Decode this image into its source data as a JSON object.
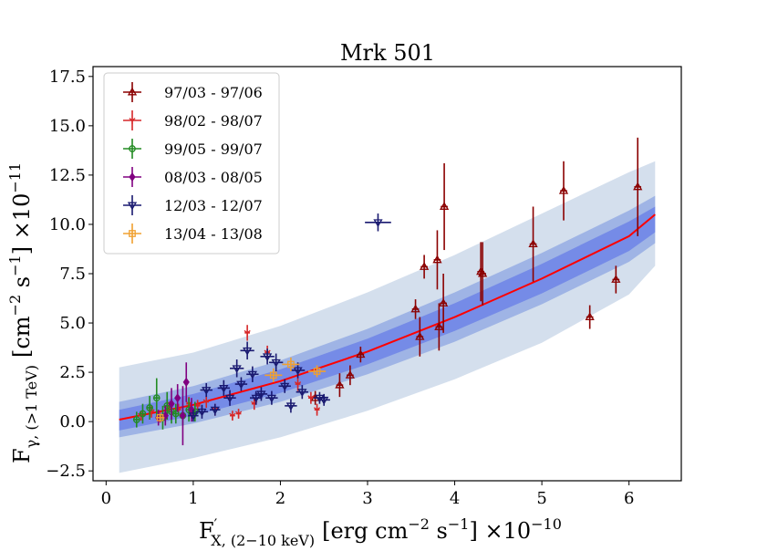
{
  "chart_data": {
    "type": "scatter",
    "title": "Mrk 501",
    "xlabel": {
      "main": "F",
      "prime": "′",
      "sub": "X, (2−10 keV)",
      "units": "[erg cm",
      "units_exp1": "−2",
      "units_mid": " s",
      "units_exp2": "−1",
      "units_end": "] ×10",
      "scale_exp": "−10"
    },
    "ylabel": {
      "main": "F",
      "sub": "γ, (>1 TeV)",
      "units": "[cm",
      "units_exp1": "−2",
      "units_mid": " s",
      "units_exp2": "−1",
      "units_end": "] ×10",
      "scale_exp": "−11"
    },
    "xlim": [
      -0.15,
      6.6
    ],
    "ylim": [
      -3.0,
      18.0
    ],
    "xticks": [
      0,
      1,
      2,
      3,
      4,
      5,
      6
    ],
    "xtick_labels": [
      "0",
      "1",
      "2",
      "3",
      "4",
      "5",
      "6"
    ],
    "yticks": [
      -2.5,
      0.0,
      2.5,
      5.0,
      7.5,
      10.0,
      12.5,
      15.0,
      17.5
    ],
    "ytick_labels": [
      "−2.5",
      "0.0",
      "2.5",
      "5.0",
      "7.5",
      "10.0",
      "12.5",
      "15.0",
      "17.5"
    ],
    "grid": false,
    "legend_position": "top-left",
    "fit": {
      "color": "#ff0000",
      "x": [
        0.15,
        1,
        2,
        3,
        4,
        5,
        6,
        6.3
      ],
      "y": [
        0.1,
        0.85,
        2.05,
        3.55,
        5.3,
        7.25,
        9.4,
        10.5
      ]
    },
    "bands": [
      {
        "color": "#b0c4de",
        "lower": [
          -2.6,
          -1.85,
          -0.8,
          0.55,
          2.15,
          4.0,
          6.45,
          7.9
        ],
        "upper": [
          2.75,
          3.5,
          4.85,
          6.55,
          8.45,
          10.55,
          12.65,
          13.2
        ]
      },
      {
        "color": "#7b98e0",
        "lower": [
          -0.8,
          -0.1,
          1.0,
          2.4,
          4.05,
          5.95,
          8.1,
          9.05
        ],
        "upper": [
          1.0,
          1.8,
          3.1,
          4.7,
          6.55,
          8.55,
          10.7,
          11.45
        ]
      },
      {
        "color": "#5a6fe8",
        "lower": [
          -0.45,
          0.3,
          1.45,
          2.9,
          4.6,
          6.5,
          8.65,
          9.6
        ],
        "upper": [
          0.6,
          1.4,
          2.65,
          4.2,
          6.0,
          8.0,
          10.15,
          10.9
        ]
      }
    ],
    "series": [
      {
        "name": "97/03 - 97/06",
        "color": "#8b0000",
        "marker": "triangle-up",
        "x": [
          2.4,
          2.68,
          2.8,
          2.92,
          3.55,
          3.6,
          3.65,
          3.8,
          3.82,
          3.87,
          3.88,
          4.3,
          4.32,
          4.9,
          5.25,
          5.55,
          5.85,
          6.1
        ],
        "y": [
          1.2,
          1.85,
          2.35,
          3.4,
          5.7,
          4.3,
          7.85,
          8.2,
          4.8,
          6.0,
          10.9,
          7.6,
          7.5,
          9.0,
          11.7,
          5.3,
          7.2,
          11.9
        ],
        "yerr": [
          0.35,
          0.6,
          0.5,
          0.4,
          0.5,
          1.0,
          0.6,
          1.5,
          1.2,
          1.5,
          2.2,
          1.5,
          1.6,
          1.9,
          1.5,
          0.6,
          0.7,
          2.5
        ],
        "xerr": [
          0.04,
          0.04,
          0.04,
          0.04,
          0.04,
          0.04,
          0.04,
          0.04,
          0.04,
          0.04,
          0.04,
          0.04,
          0.04,
          0.04,
          0.04,
          0.04,
          0.04,
          0.04
        ]
      },
      {
        "name": "98/02 - 98/07",
        "color": "#d62728",
        "marker": "tri-down",
        "x": [
          0.4,
          0.52,
          0.62,
          0.72,
          0.83,
          0.95,
          1.05,
          1.15,
          1.25,
          1.45,
          1.52,
          1.62,
          1.7,
          1.85,
          2.2,
          2.35,
          2.42
        ],
        "y": [
          0.3,
          0.5,
          0.2,
          0.7,
          0.6,
          0.9,
          0.8,
          1.0,
          0.6,
          0.3,
          0.4,
          4.5,
          0.9,
          3.5,
          1.9,
          1.2,
          0.6
        ],
        "yerr": [
          0.25,
          0.3,
          0.25,
          0.3,
          0.3,
          0.35,
          0.3,
          0.3,
          0.3,
          0.25,
          0.25,
          0.4,
          0.3,
          0.35,
          0.35,
          0.3,
          0.3
        ],
        "xerr": [
          0.03,
          0.03,
          0.03,
          0.03,
          0.03,
          0.03,
          0.03,
          0.03,
          0.03,
          0.03,
          0.03,
          0.03,
          0.03,
          0.03,
          0.03,
          0.03,
          0.03
        ]
      },
      {
        "name": "99/05 - 99/07",
        "color": "#228b22",
        "marker": "circle",
        "x": [
          0.35,
          0.42,
          0.5,
          0.58,
          0.65,
          0.7,
          0.75,
          0.8,
          0.88,
          0.95,
          1.02
        ],
        "y": [
          0.1,
          0.4,
          0.7,
          1.2,
          0.2,
          0.8,
          0.5,
          0.4,
          0.3,
          0.6,
          0.5
        ],
        "yerr": [
          0.4,
          0.5,
          0.6,
          1.0,
          0.6,
          0.7,
          0.6,
          0.5,
          0.5,
          0.6,
          0.5
        ],
        "xerr": [
          0.03,
          0.03,
          0.03,
          0.03,
          0.03,
          0.03,
          0.03,
          0.03,
          0.03,
          0.03,
          0.03
        ]
      },
      {
        "name": "08/03 - 08/05",
        "color": "#800080",
        "marker": "diamond",
        "x": [
          0.6,
          0.68,
          0.75,
          0.82,
          0.88,
          0.92,
          0.98
        ],
        "y": [
          0.2,
          0.3,
          0.9,
          1.2,
          0.3,
          2.0,
          0.6
        ],
        "yerr": [
          0.4,
          0.5,
          0.8,
          0.7,
          1.5,
          1.0,
          0.6
        ],
        "xerr": [
          0.03,
          0.03,
          0.03,
          0.03,
          0.03,
          0.03,
          0.03
        ]
      },
      {
        "name": "12/03 - 12/07",
        "color": "#191970",
        "marker": "triangle-down",
        "x": [
          1.0,
          1.1,
          1.15,
          1.25,
          1.35,
          1.42,
          1.5,
          1.55,
          1.62,
          1.68,
          1.72,
          1.78,
          1.85,
          1.9,
          1.95,
          2.05,
          2.12,
          2.2,
          2.25,
          2.45,
          2.5,
          3.12
        ],
        "y": [
          0.3,
          0.5,
          1.6,
          0.6,
          1.7,
          1.2,
          2.7,
          1.9,
          3.6,
          2.4,
          1.2,
          1.4,
          3.3,
          1.2,
          3.0,
          1.8,
          0.8,
          2.6,
          1.5,
          1.2,
          1.1,
          10.1
        ],
        "yerr": [
          0.3,
          0.35,
          0.35,
          0.3,
          0.4,
          0.4,
          0.45,
          0.35,
          0.45,
          0.4,
          0.35,
          0.35,
          0.4,
          0.35,
          0.45,
          0.35,
          0.35,
          0.4,
          0.35,
          0.3,
          0.3,
          0.45
        ],
        "xerr": [
          0.06,
          0.07,
          0.07,
          0.06,
          0.07,
          0.07,
          0.08,
          0.07,
          0.08,
          0.07,
          0.07,
          0.07,
          0.08,
          0.07,
          0.08,
          0.07,
          0.07,
          0.08,
          0.07,
          0.07,
          0.07,
          0.15
        ]
      },
      {
        "name": "13/04 - 13/08",
        "color": "#f0a030",
        "marker": "square",
        "x": [
          0.62,
          1.92,
          2.12,
          2.42
        ],
        "y": [
          0.2,
          2.35,
          2.9,
          2.55
        ],
        "yerr": [
          0.2,
          0.35,
          0.35,
          0.3
        ],
        "xerr": [
          0.05,
          0.1,
          0.1,
          0.1
        ]
      }
    ]
  }
}
